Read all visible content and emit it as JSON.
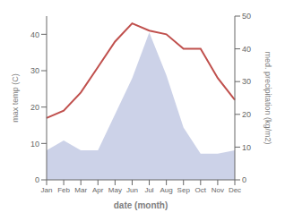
{
  "chart_data": {
    "type": "line",
    "categories": [
      "Jan",
      "Feb",
      "Mar",
      "Apr",
      "May",
      "Jun",
      "Jul",
      "Aug",
      "Sep",
      "Oct",
      "Nov",
      "Dec"
    ],
    "series": [
      {
        "type": "area",
        "axis": "y2",
        "color": "#aab4d8",
        "values": [
          9,
          12,
          9,
          9,
          20,
          31,
          45,
          32,
          16,
          8,
          8,
          9
        ]
      },
      {
        "type": "line",
        "color": "#c0504d",
        "values": [
          17,
          19,
          24,
          31,
          38,
          43,
          41,
          40,
          36,
          36,
          28,
          22
        ]
      }
    ],
    "xlabel": "date (month)",
    "ylabel": "max temp (C)",
    "y2label": "med. precipitation (kg/m2)",
    "ylim": [
      0,
      45
    ],
    "yticks": [
      0,
      10,
      20,
      30,
      40
    ],
    "y2lim": [
      0,
      50
    ],
    "y2ticks": [
      0,
      10,
      20,
      30,
      40,
      50
    ],
    "grid": false
  }
}
